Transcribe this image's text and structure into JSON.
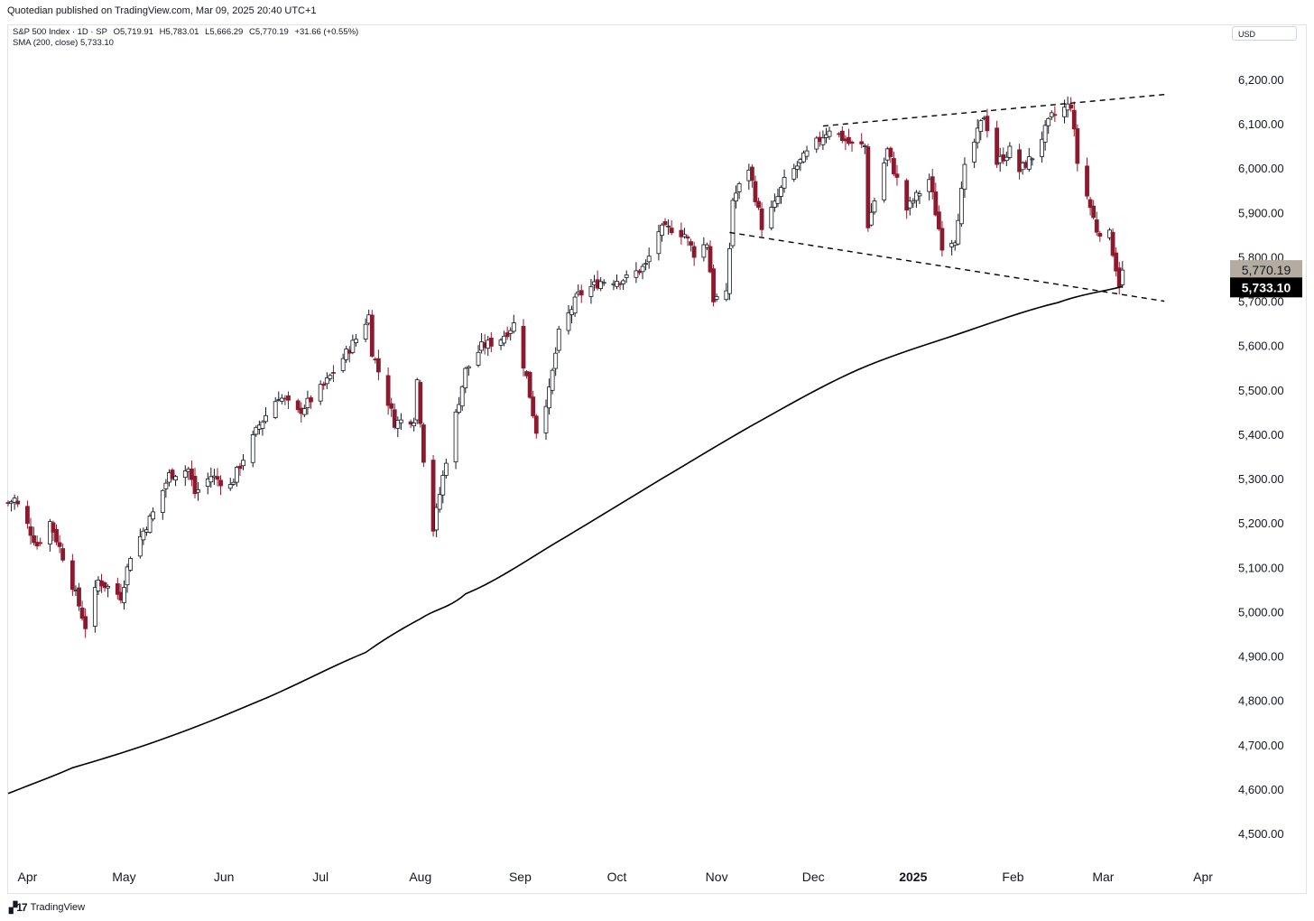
{
  "header": {
    "publisher_text": "Quotedian published on TradingView.com, Mar 09, 2025 20:40 UTC+1",
    "currency": "USD"
  },
  "legend": {
    "symbol_line": "S&P 500 Index · 1D · SP",
    "open": "O5,719.91",
    "high": "H5,783.01",
    "low": "L5,666.29",
    "close": "C5,770.19",
    "change": "+31.66 (+0.55%)",
    "sma_line": "SMA (200, close)  5,733.10"
  },
  "footer": {
    "brand": "TradingView"
  },
  "colors": {
    "up_candle_fill": "#ffffff",
    "down_candle_fill": "#8b1a2e",
    "candle_outline": "#131722",
    "sma": "#000000",
    "trendline": "#000000",
    "price_label_bg": "#b5aca1",
    "sma_label_bg": "#000000"
  },
  "chart_data": {
    "type": "candlestick",
    "title": "",
    "xlabel": "",
    "ylabel": "",
    "ylim": [
      4450,
      6290
    ],
    "y_ticks": [
      4500,
      4600,
      4700,
      4800,
      4900,
      5000,
      5100,
      5200,
      5300,
      5400,
      5500,
      5600,
      5700,
      5800,
      5900,
      6000,
      6100,
      6200
    ],
    "y_tick_labels": [
      "4,500.00",
      "4,600.00",
      "4,700.00",
      "4,800.00",
      "4,900.00",
      "5,000.00",
      "5,100.00",
      "5,200.00",
      "5,300.00",
      "5,400.00",
      "5,500.00",
      "5,600.00",
      "5,700.00",
      "5,800.00",
      "5,900.00",
      "6,000.00",
      "6,100.00",
      "6,200.00"
    ],
    "x_tick_labels": [
      "Apr",
      "May",
      "Jun",
      "Jul",
      "Aug",
      "Sep",
      "Oct",
      "Nov",
      "Dec",
      "2025",
      "Feb",
      "Mar",
      "Apr"
    ],
    "x_tick_dates": [
      "2024-04-01",
      "2024-05-01",
      "2024-06-01",
      "2024-07-01",
      "2024-08-01",
      "2024-09-01",
      "2024-10-01",
      "2024-11-01",
      "2024-12-01",
      "2025-01-01",
      "2025-02-01",
      "2025-03-01",
      "2025-04-01"
    ],
    "x_range": [
      "2024-03-26",
      "2025-04-08"
    ],
    "last_price_label": "5,770.19",
    "sma_value_label": "5,733.10",
    "last_close": 5770.19,
    "sma_last": 5733.1,
    "grid": false,
    "close_anchors": [
      [
        "2024-03-26",
        5245
      ],
      [
        "2024-03-28",
        5254
      ],
      [
        "2024-04-04",
        5150
      ],
      [
        "2024-04-08",
        5202
      ],
      [
        "2024-04-12",
        5125
      ],
      [
        "2024-04-15",
        5061
      ],
      [
        "2024-04-19",
        4967
      ],
      [
        "2024-04-23",
        5070
      ],
      [
        "2024-04-30",
        5035
      ],
      [
        "2024-05-03",
        5128
      ],
      [
        "2024-05-10",
        5222
      ],
      [
        "2024-05-15",
        5308
      ],
      [
        "2024-05-21",
        5321
      ],
      [
        "2024-05-23",
        5267
      ],
      [
        "2024-05-28",
        5306
      ],
      [
        "2024-06-03",
        5283
      ],
      [
        "2024-06-07",
        5346
      ],
      [
        "2024-06-12",
        5421
      ],
      [
        "2024-06-18",
        5487
      ],
      [
        "2024-06-24",
        5448
      ],
      [
        "2024-07-02",
        5509
      ],
      [
        "2024-07-08",
        5572
      ],
      [
        "2024-07-12",
        5615
      ],
      [
        "2024-07-16",
        5667
      ],
      [
        "2024-07-17",
        5588
      ],
      [
        "2024-07-24",
        5427
      ],
      [
        "2024-07-30",
        5436
      ],
      [
        "2024-07-31",
        5522
      ],
      [
        "2024-08-02",
        5346
      ],
      [
        "2024-08-05",
        5186
      ],
      [
        "2024-08-09",
        5344
      ],
      [
        "2024-08-15",
        5543
      ],
      [
        "2024-08-20",
        5597
      ],
      [
        "2024-08-26",
        5616
      ],
      [
        "2024-08-30",
        5648
      ],
      [
        "2024-09-03",
        5528
      ],
      [
        "2024-09-06",
        5408
      ],
      [
        "2024-09-10",
        5496
      ],
      [
        "2024-09-13",
        5626
      ],
      [
        "2024-09-19",
        5713
      ],
      [
        "2024-09-26",
        5745
      ],
      [
        "2024-10-04",
        5751
      ],
      [
        "2024-10-10",
        5780
      ],
      [
        "2024-10-14",
        5859
      ],
      [
        "2024-10-18",
        5864
      ],
      [
        "2024-10-22",
        5851
      ],
      [
        "2024-10-25",
        5808
      ],
      [
        "2024-10-29",
        5832
      ],
      [
        "2024-10-31",
        5705
      ],
      [
        "2024-11-04",
        5712
      ],
      [
        "2024-11-06",
        5929
      ],
      [
        "2024-11-11",
        6001
      ],
      [
        "2024-11-15",
        5870
      ],
      [
        "2024-11-19",
        5917
      ],
      [
        "2024-11-22",
        5969
      ],
      [
        "2024-11-29",
        6032
      ],
      [
        "2024-12-06",
        6090
      ],
      [
        "2024-12-13",
        6051
      ],
      [
        "2024-12-17",
        6050
      ],
      [
        "2024-12-18",
        5872
      ],
      [
        "2024-12-24",
        6040
      ],
      [
        "2024-12-30",
        5907
      ],
      [
        "2025-01-06",
        5975
      ],
      [
        "2025-01-10",
        5827
      ],
      [
        "2025-01-14",
        5842
      ],
      [
        "2025-01-17",
        5997
      ],
      [
        "2025-01-23",
        6119
      ],
      [
        "2025-01-27",
        6012
      ],
      [
        "2025-01-31",
        6040
      ],
      [
        "2025-02-03",
        5994
      ],
      [
        "2025-02-07",
        6026
      ],
      [
        "2025-02-13",
        6115
      ],
      [
        "2025-02-19",
        6144
      ],
      [
        "2025-02-21",
        6013
      ],
      [
        "2025-02-27",
        5861
      ],
      [
        "2025-03-03",
        5849
      ],
      [
        "2025-03-06",
        5739
      ],
      [
        "2025-03-07",
        5770
      ]
    ],
    "sma_anchors": [
      [
        "2024-03-26",
        4590
      ],
      [
        "2024-04-15",
        4648
      ],
      [
        "2024-05-15",
        4718
      ],
      [
        "2024-06-15",
        4808
      ],
      [
        "2024-07-15",
        4908
      ],
      [
        "2024-08-01",
        4984
      ],
      [
        "2024-08-15",
        5040
      ],
      [
        "2024-09-15",
        5168
      ],
      [
        "2024-10-15",
        5300
      ],
      [
        "2024-11-15",
        5432
      ],
      [
        "2024-12-15",
        5546
      ],
      [
        "2025-01-15",
        5626
      ],
      [
        "2025-02-15",
        5697
      ],
      [
        "2025-03-07",
        5733
      ]
    ],
    "upper_trendline": [
      [
        "2024-12-04",
        6095
      ],
      [
        "2025-03-20",
        6166
      ]
    ],
    "lower_trendline": [
      [
        "2024-11-05",
        5855
      ],
      [
        "2025-03-20",
        5700
      ]
    ]
  }
}
